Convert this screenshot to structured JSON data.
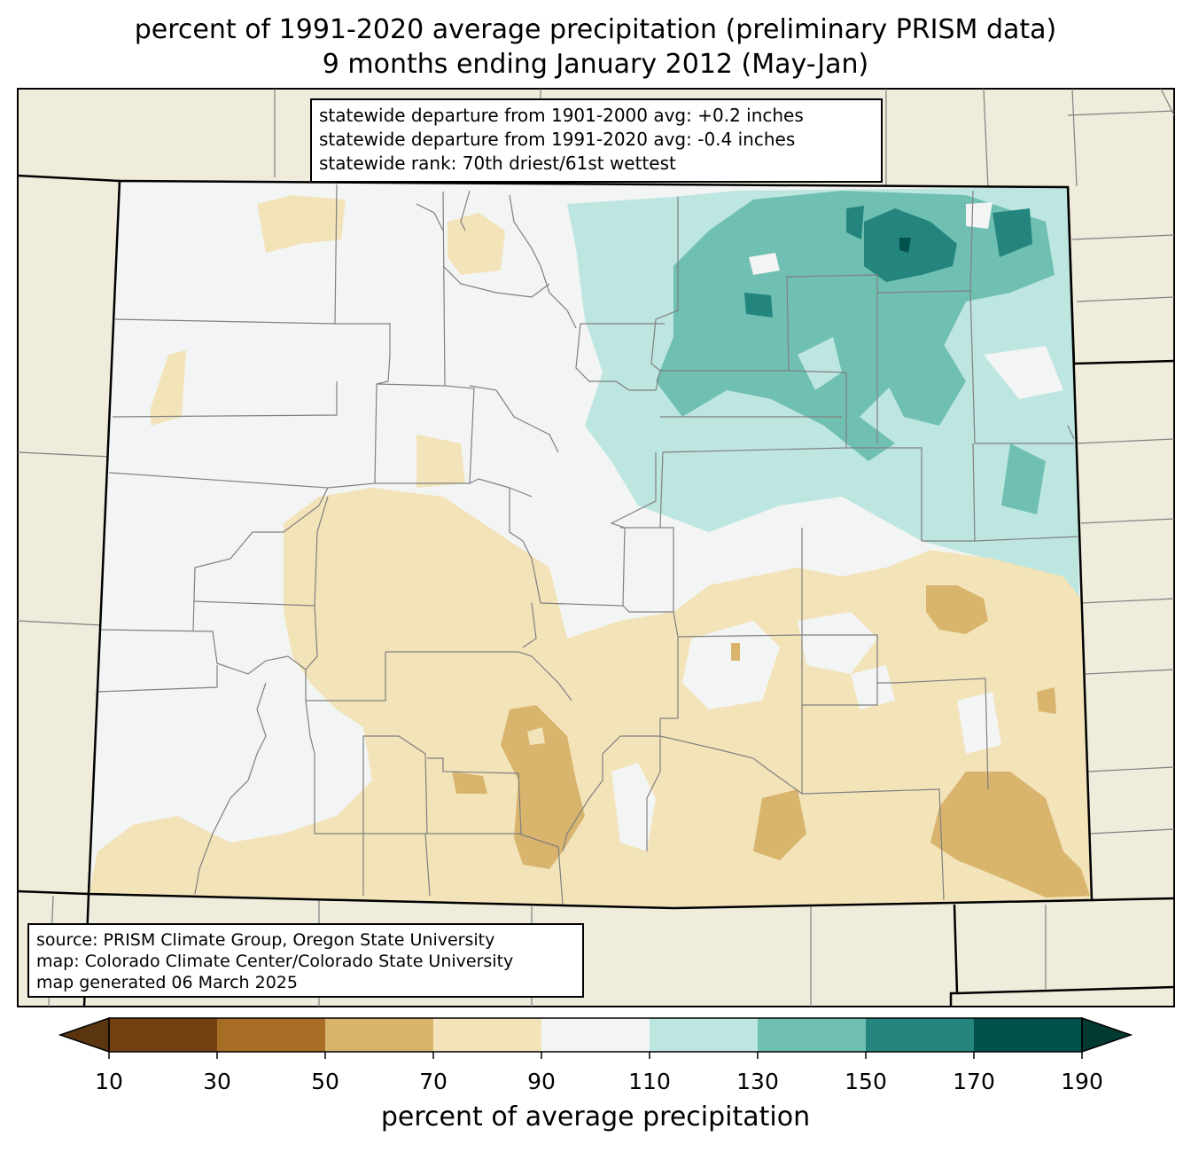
{
  "title": {
    "line1": "percent of 1991-2020 average precipitation (preliminary PRISM data)",
    "line2": "9 months ending January 2012 (May-Jan)"
  },
  "stats": {
    "line1": "statewide departure from 1901-2000 avg: +0.2 inches",
    "line2": "statewide departure from 1991-2020 avg: -0.4 inches",
    "line3": "statewide rank: 70th driest/61st wettest"
  },
  "source": {
    "line1": "source: PRISM Climate Group, Oregon State University",
    "line2": "map: Colorado Climate Center/Colorado State University",
    "line3": "map generated 06 March 2025"
  },
  "colorbar": {
    "label": "percent of average precipitation",
    "ticks": [
      "10",
      "30",
      "50",
      "70",
      "90",
      "110",
      "130",
      "150",
      "170",
      "190"
    ],
    "colors": [
      "#734012",
      "#a86d24",
      "#d8b46d",
      "#f2e3b9",
      "#f3f4f4",
      "#bde6e1",
      "#6fbfb2",
      "#23857d",
      "#01524a"
    ],
    "under_color": "#5b3510",
    "over_color": "#003a30"
  },
  "colors": {
    "land_outside": "#efecdb",
    "border": "#000000",
    "county_lines": "#808080"
  }
}
